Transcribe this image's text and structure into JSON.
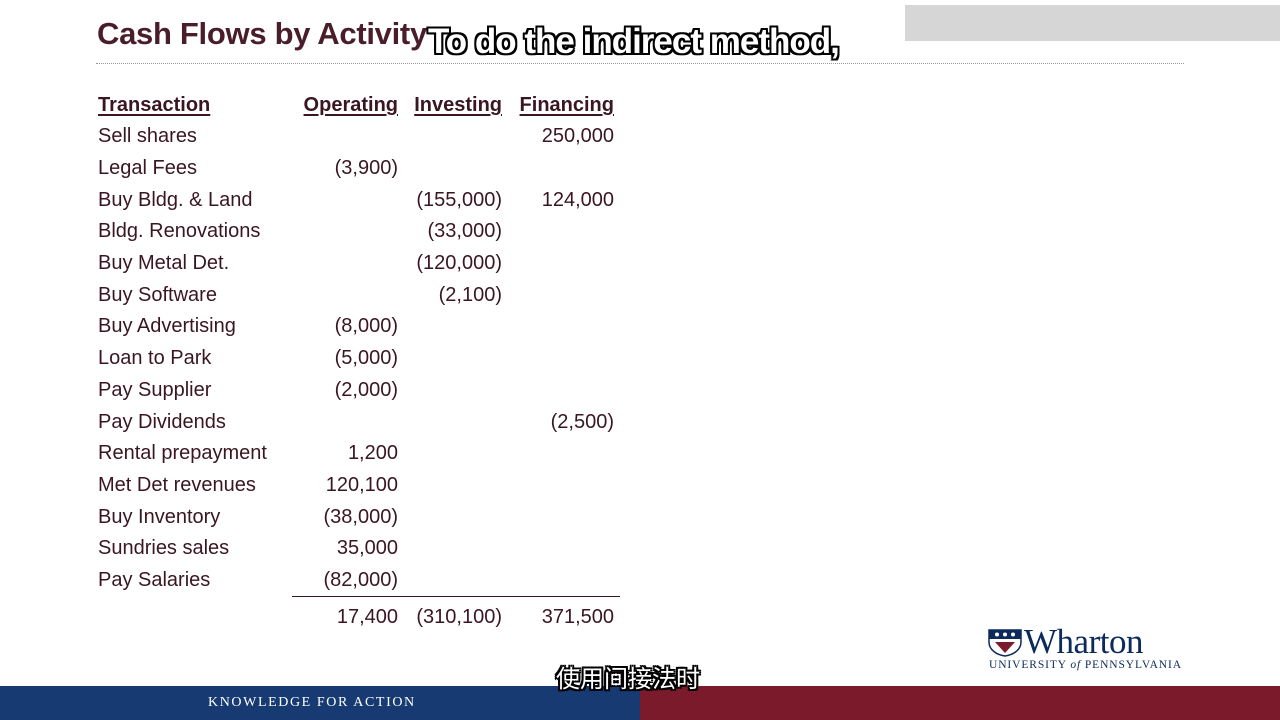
{
  "slide": {
    "title": "Cash Flows by Activity",
    "subtitle_en": "To do the indirect method,",
    "subtitle_cn": "使用间接法时",
    "tagline": "KNOWLEDGE FOR ACTION",
    "logo": {
      "word": "Wharton",
      "sub_prefix": "UNIVERSITY ",
      "sub_of": "of",
      "sub_suffix": " PENNSYLVANIA"
    },
    "colors": {
      "title": "#4a1d2a",
      "navy_bar": "#173a73",
      "maroon_bar": "#7a1a2b",
      "logo": "#0c2a5b"
    }
  },
  "table": {
    "headers": {
      "transaction": "Transaction",
      "operating": "Operating",
      "investing": "Investing",
      "financing": "Financing"
    },
    "rows": [
      {
        "transaction": "Sell shares",
        "operating": "",
        "investing": "",
        "financing": "250,000"
      },
      {
        "transaction": "Legal Fees",
        "operating": "(3,900)",
        "investing": "",
        "financing": ""
      },
      {
        "transaction": "Buy Bldg. & Land",
        "operating": "",
        "investing": "(155,000)",
        "financing": "124,000"
      },
      {
        "transaction": "Bldg. Renovations",
        "operating": "",
        "investing": "(33,000)",
        "financing": ""
      },
      {
        "transaction": "Buy Metal Det.",
        "operating": "",
        "investing": "(120,000)",
        "financing": ""
      },
      {
        "transaction": "Buy Software",
        "operating": "",
        "investing": "(2,100)",
        "financing": ""
      },
      {
        "transaction": "Buy Advertising",
        "operating": "(8,000)",
        "investing": "",
        "financing": ""
      },
      {
        "transaction": "Loan to Park",
        "operating": "(5,000)",
        "investing": "",
        "financing": ""
      },
      {
        "transaction": "Pay Supplier",
        "operating": "(2,000)",
        "investing": "",
        "financing": ""
      },
      {
        "transaction": "Pay Dividends",
        "operating": "",
        "investing": "",
        "financing": "(2,500)"
      },
      {
        "transaction": "Rental prepayment",
        "operating": "1,200",
        "investing": "",
        "financing": ""
      },
      {
        "transaction": "Met Det revenues",
        "operating": "120,100",
        "investing": "",
        "financing": ""
      },
      {
        "transaction": "Buy Inventory",
        "operating": "(38,000)",
        "investing": "",
        "financing": ""
      },
      {
        "transaction": "Sundries sales",
        "operating": "35,000",
        "investing": "",
        "financing": ""
      },
      {
        "transaction": "Pay Salaries",
        "operating": "(82,000)",
        "investing": "",
        "financing": ""
      }
    ],
    "totals": {
      "operating": "17,400",
      "investing": "(310,100)",
      "financing": "371,500"
    }
  }
}
